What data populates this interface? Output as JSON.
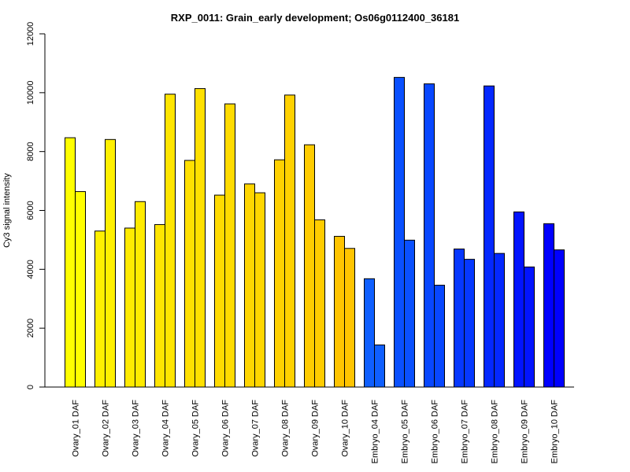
{
  "chart_data": {
    "type": "bar",
    "title": "RXP_0011: Grain_early development; Os06g0112400_36181",
    "xlabel": "",
    "ylabel": "Cy3 signal intensity",
    "ylim": [
      0,
      12000
    ],
    "yticks": [
      0,
      2000,
      4000,
      6000,
      8000,
      10000,
      12000
    ],
    "grid": false,
    "categories": [
      "Ovary_01 DAF",
      "Ovary_02 DAF",
      "Ovary_03 DAF",
      "Ovary_04 DAF",
      "Ovary_05 DAF",
      "Ovary_06 DAF",
      "Ovary_07 DAF",
      "Ovary_08 DAF",
      "Ovary_09 DAF",
      "Ovary_10 DAF",
      "Embryo_04 DAF",
      "Embryo_05 DAF",
      "Embryo_06 DAF",
      "Embryo_07 DAF",
      "Embryo_08 DAF",
      "Embryo_09 DAF",
      "Embryo_10 DAF"
    ],
    "series": [
      {
        "values": [
          8470,
          5300,
          5400,
          5520,
          7700,
          6520,
          6900,
          7720,
          8230,
          5120,
          3680,
          10520,
          10300,
          4690,
          10230,
          5950,
          5550
        ]
      },
      {
        "values": [
          6640,
          8410,
          6300,
          9950,
          10140,
          9620,
          6600,
          9920,
          5680,
          4710,
          1430,
          4990,
          3460,
          4340,
          4540,
          4080,
          4660
        ]
      }
    ],
    "colors": [
      "#ffff00",
      "#fff000",
      "#ffeb00",
      "#ffe500",
      "#ffe000",
      "#ffdb00",
      "#ffd600",
      "#ffd100",
      "#ffcc00",
      "#ffc400",
      "#0f5fff",
      "#0a50ff",
      "#0847ff",
      "#0638ff",
      "#0428ff",
      "#0214ff",
      "#0000ff"
    ]
  }
}
